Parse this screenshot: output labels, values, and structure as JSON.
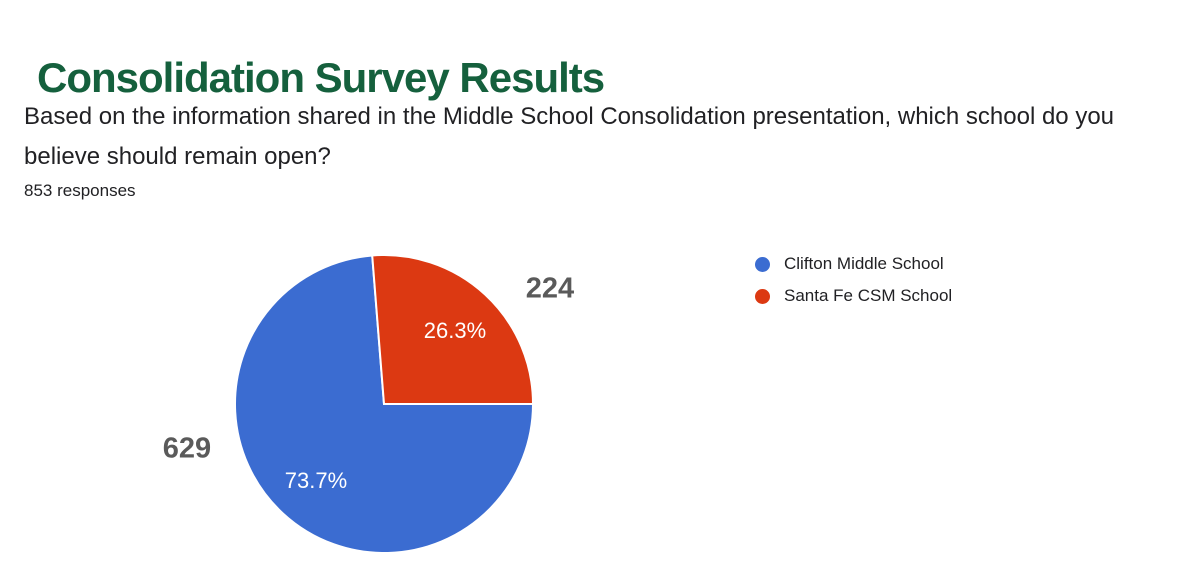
{
  "page": {
    "title": "Consolidation Survey Results",
    "question": "Based on the information shared in the Middle School Consolidation presentation, which school do you believe should remain open?",
    "responses_label": "853 responses"
  },
  "colors": {
    "title_green": "#15603D",
    "body_text": "#212124",
    "outside_label_grey": "#5A5A5A",
    "slice_label_white": "#FFFFFF",
    "background": "#FFFFFF"
  },
  "chart_data": {
    "type": "pie",
    "title": "Consolidation Survey Results",
    "total_responses": 853,
    "legend_position": "right",
    "direction": "clockwise",
    "start_angle_clockwise_from_top_deg": 90,
    "categories": [
      "Clifton Middle School",
      "Santa Fe CSM School"
    ],
    "slices": [
      {
        "label": "Clifton Middle School",
        "value": 629,
        "percent_label": "73.7%",
        "color": "#3B6CD1"
      },
      {
        "label": "Santa Fe CSM School",
        "value": 224,
        "percent_label": "26.3%",
        "color": "#DC3912"
      }
    ]
  }
}
